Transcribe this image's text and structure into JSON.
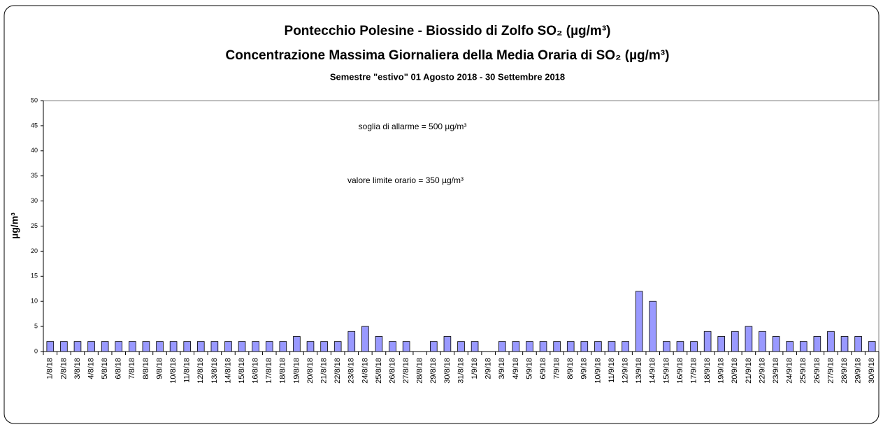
{
  "chart_data": {
    "type": "bar",
    "title": "Pontecchio Polesine - Biossido di Zolfo SO₂ (µg/m³)",
    "subtitle": "Concentrazione Massima Giornaliera della Media Oraria di SO₂ (µg/m³)",
    "period": "Semestre \"estivo\" 01 Agosto 2018 - 30 Settembre 2018",
    "annotations": [
      "soglia di allarme = 500 µg/m³",
      "valore limite orario = 350 µg/m³"
    ],
    "y_label": "µg/m³",
    "categories": [
      "1/8/18",
      "2/8/18",
      "3/8/18",
      "4/8/18",
      "5/8/18",
      "6/8/18",
      "7/8/18",
      "8/8/18",
      "9/8/18",
      "10/8/18",
      "11/8/18",
      "12/8/18",
      "13/8/18",
      "14/8/18",
      "15/8/18",
      "16/8/18",
      "17/8/18",
      "18/8/18",
      "19/8/18",
      "20/8/18",
      "21/8/18",
      "22/8/18",
      "23/8/18",
      "24/8/18",
      "25/8/18",
      "26/8/18",
      "27/8/18",
      "28/8/18",
      "29/8/18",
      "30/8/18",
      "31/8/18",
      "1/9/18",
      "2/9/18",
      "3/9/18",
      "4/9/18",
      "5/9/18",
      "6/9/18",
      "7/9/18",
      "8/9/18",
      "9/9/18",
      "10/9/18",
      "11/9/18",
      "12/9/18",
      "13/9/18",
      "14/9/18",
      "15/9/18",
      "16/9/18",
      "17/9/18",
      "18/9/18",
      "19/9/18",
      "20/9/18",
      "21/9/18",
      "22/9/18",
      "23/9/18",
      "24/9/18",
      "25/9/18",
      "26/9/18",
      "27/9/18",
      "28/9/18",
      "29/9/18",
      "30/9/18"
    ],
    "values": [
      2,
      2,
      2,
      2,
      2,
      2,
      2,
      2,
      2,
      2,
      2,
      2,
      2,
      2,
      2,
      2,
      2,
      2,
      3,
      2,
      2,
      2,
      4,
      5,
      3,
      2,
      2,
      null,
      2,
      3,
      2,
      2,
      null,
      2,
      2,
      2,
      2,
      2,
      2,
      2,
      2,
      2,
      2,
      12,
      10,
      2,
      2,
      2,
      4,
      3,
      4,
      5,
      4,
      3,
      2,
      2,
      3,
      4,
      3,
      3,
      2
    ],
    "color": "#9999ff",
    "ylim": [
      0,
      50
    ],
    "yticks": [
      0,
      5,
      10,
      15,
      20,
      25,
      30,
      35,
      40,
      45,
      50
    ],
    "grid": false
  }
}
